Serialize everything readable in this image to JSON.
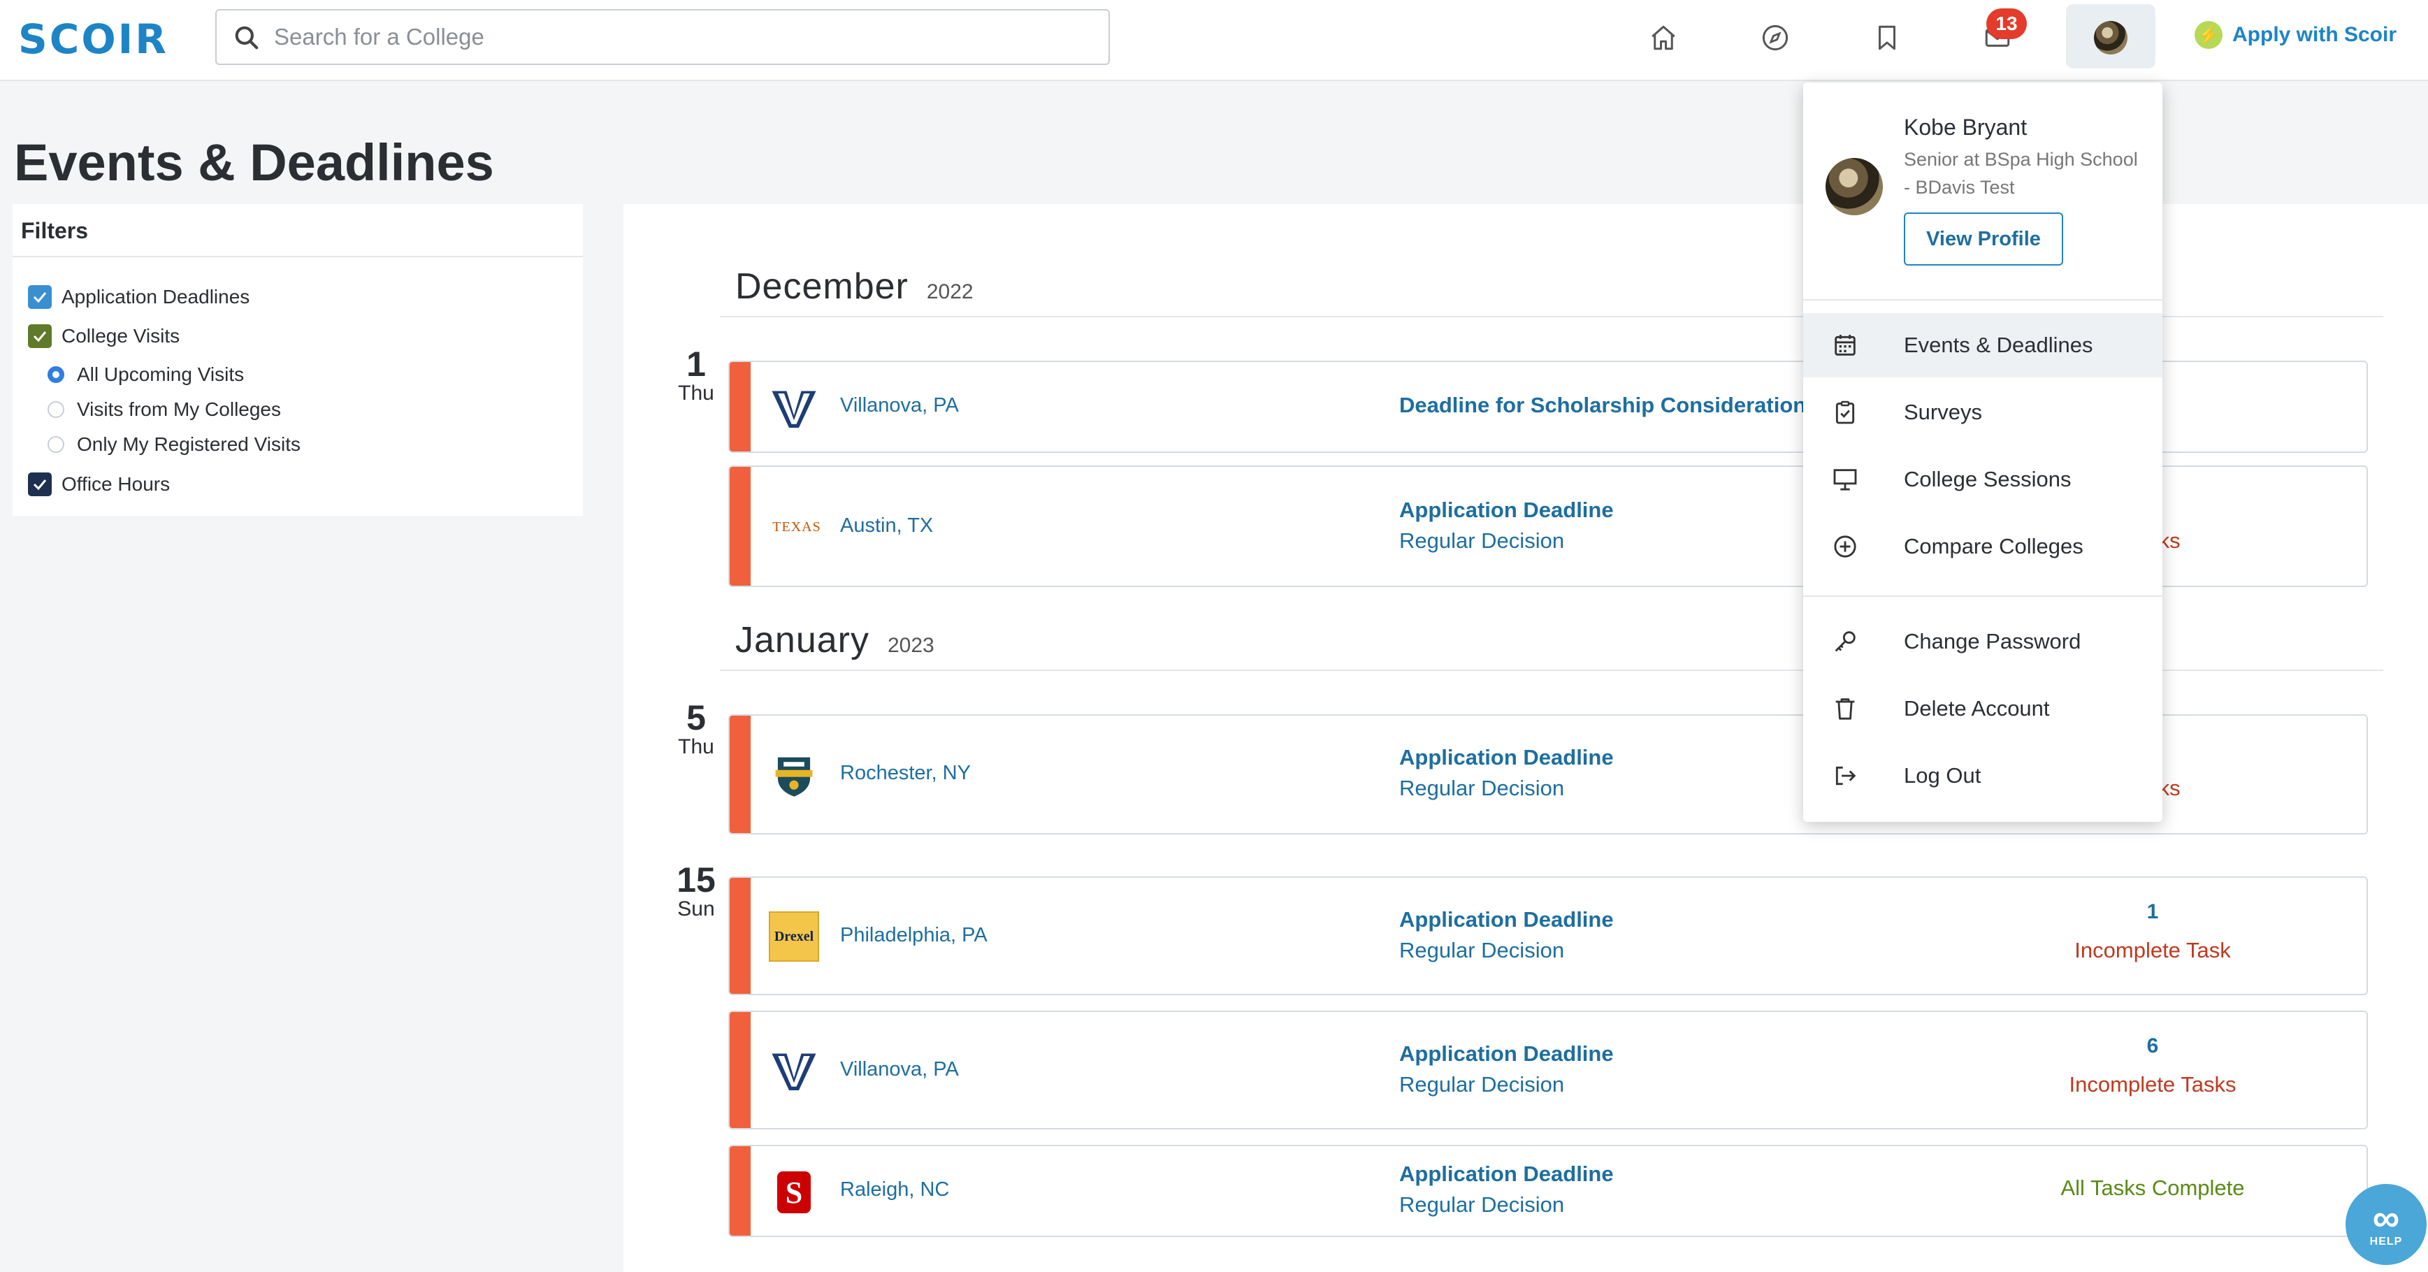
{
  "header": {
    "logo": "SCOIR",
    "search_placeholder": "Search for a College",
    "search_value": "",
    "notifications_count": "13",
    "apply_label": "Apply with Scoir",
    "nav_icons": [
      "home-icon",
      "compass-icon",
      "bookmark-icon",
      "mail-icon"
    ]
  },
  "page": {
    "title": "Events & Deadlines"
  },
  "filters": {
    "title": "Filters",
    "items": [
      {
        "label": "Application Deadlines",
        "checked": true,
        "color": "#3a8fd1"
      },
      {
        "label": "College Visits",
        "checked": true,
        "color": "#5e7a2a"
      },
      {
        "label": "All Upcoming Visits",
        "selected": true
      },
      {
        "label": "Visits from My Colleges",
        "selected": false
      },
      {
        "label": "Only My Registered Visits",
        "selected": false
      },
      {
        "label": "Office Hours",
        "checked": true,
        "color": "#1d3050"
      }
    ]
  },
  "months": [
    {
      "name": "December",
      "year": "2022"
    },
    {
      "name": "January",
      "year": "2023"
    }
  ],
  "days": [
    {
      "num": "1",
      "name": "Thu"
    },
    {
      "num": "5",
      "name": "Thu"
    },
    {
      "num": "15",
      "name": "Sun"
    }
  ],
  "events": [
    {
      "location": "Villanova, PA",
      "title": "Deadline for Scholarship Consideration",
      "subtitle": "",
      "task_count": "",
      "task_status": ""
    },
    {
      "location": "Austin, TX",
      "title": "Application Deadline",
      "subtitle": "Regular Decision",
      "task_count": "",
      "task_status": "Tasks"
    },
    {
      "location": "Rochester, NY",
      "title": "Application Deadline",
      "subtitle": "Regular Decision",
      "task_count": "",
      "task_status": "Tasks"
    },
    {
      "location": "Philadelphia, PA",
      "title": "Application Deadline",
      "subtitle": "Regular Decision",
      "task_count": "1",
      "task_status": "Incomplete Task"
    },
    {
      "location": "Villanova, PA",
      "title": "Application Deadline",
      "subtitle": "Regular Decision",
      "task_count": "6",
      "task_status": "Incomplete Tasks"
    },
    {
      "location": "Raleigh, NC",
      "title": "Application Deadline",
      "subtitle": "Regular Decision",
      "task_count": "",
      "task_status": "All Tasks Complete"
    }
  ],
  "logos": {
    "texas": "TEXAS",
    "drexel": "Drexel",
    "ncstate": "S"
  },
  "profile_menu": {
    "name": "Kobe Bryant",
    "subtitle": "Senior at BSpa High School - BDavis Test",
    "view_profile": "View Profile",
    "items": [
      {
        "label": "Events & Deadlines",
        "icon": "calendar-icon",
        "active": true
      },
      {
        "label": "Surveys",
        "icon": "clipboard-check-icon"
      },
      {
        "label": "College Sessions",
        "icon": "presentation-icon"
      },
      {
        "label": "Compare Colleges",
        "icon": "plus-circle-icon"
      },
      {
        "label": "Change Password",
        "icon": "key-icon"
      },
      {
        "label": "Delete Account",
        "icon": "trash-icon"
      },
      {
        "label": "Log Out",
        "icon": "logout-icon"
      }
    ]
  },
  "help": {
    "symbol": "∞",
    "label": "HELP"
  },
  "colors": {
    "accent": "#1d84c6",
    "deadline_bar": "#f0603c",
    "incomplete": "#c0391e",
    "complete": "#5a8a16"
  }
}
